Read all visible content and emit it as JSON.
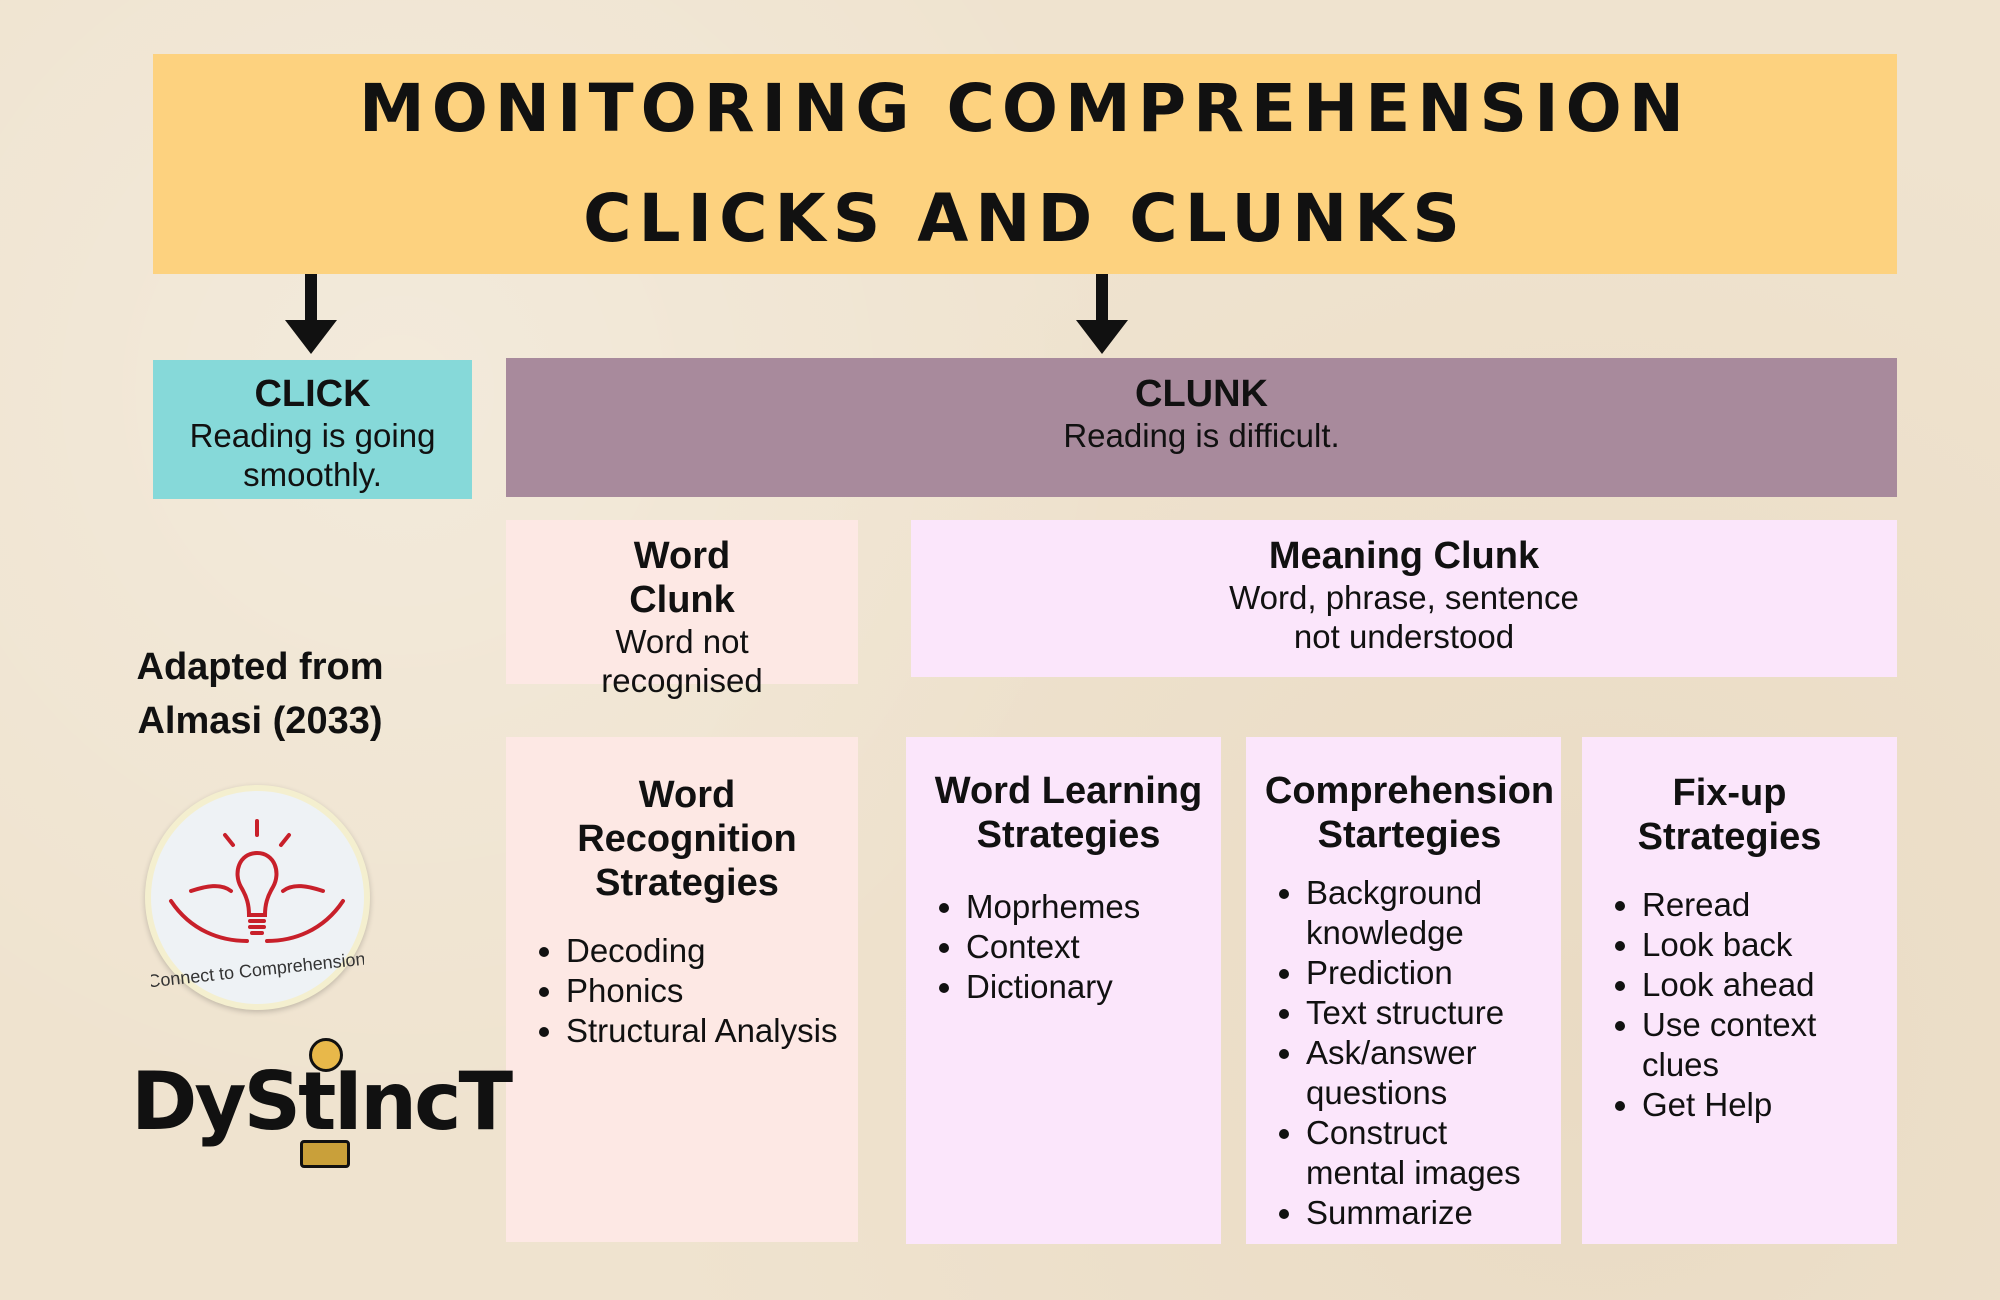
{
  "title": {
    "line1": "MONITORING COMPREHENSION",
    "line2": "CLICKS AND CLUNKS"
  },
  "click": {
    "heading": "CLICK",
    "text": "Reading is going smoothly."
  },
  "clunk": {
    "heading": "CLUNK",
    "text": "Reading is difficult."
  },
  "word_clunk": {
    "heading": "Word Clunk",
    "text": "Word not recognised"
  },
  "meaning_clunk": {
    "heading": "Meaning Clunk",
    "line1": "Word, phrase, sentence",
    "line2": "not understood"
  },
  "strategies": [
    {
      "heading": "Word Recognition Strategies",
      "items": [
        "Decoding",
        "Phonics",
        "Structural Analysis"
      ]
    },
    {
      "heading": "Word Learning Strategies",
      "items": [
        "Moprhemes",
        "Context",
        "Dictionary"
      ]
    },
    {
      "heading": "Comprehension Startegies",
      "items": [
        "Background knowledge",
        "Prediction",
        "Text structure",
        "Ask/answer questions",
        "Construct mental images",
        "Summarize"
      ]
    },
    {
      "heading": "Fix-up Strategies",
      "items": [
        "Reread",
        "Look back",
        "Look ahead",
        "Use context clues",
        "Get Help"
      ]
    }
  ],
  "attribution": {
    "line1": "Adapted from",
    "line2": "Almasi (2033)"
  },
  "logos": {
    "connect": "Connect to Comprehension",
    "dystinct": "DyStIncT"
  },
  "colors": {
    "title": "#fdd27f",
    "click": "#86d9d9",
    "clunk": "#a88a9c",
    "word": "#fde8e4",
    "meaning": "#fbe6fb"
  }
}
